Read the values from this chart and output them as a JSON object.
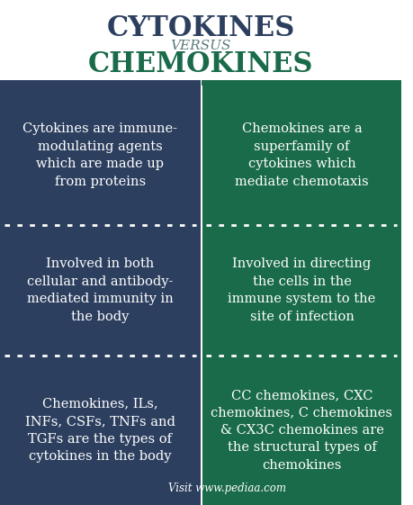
{
  "title_line1": "CYTOKINES",
  "title_line2": "VERSUS",
  "title_line3": "CHEMOKINES",
  "title_color1": "#2d3f5f",
  "title_color2": "#5a7a7a",
  "title_color3": "#1a6b4a",
  "bg_color": "#ffffff",
  "left_bg": "#2d3f5f",
  "right_bg": "#1a6b4a",
  "text_color": "#ffffff",
  "divider_color": "#ffffff",
  "cells": [
    {
      "left": "Cytokines are immune-\nmodulating agents\nwhich are made up\nfrom proteins",
      "right": "Chemokines are a\nsuperfamily of\ncytokines which\nmediate chemotaxis"
    },
    {
      "left": "Involved in both\ncellular and antibody-\nmediated immunity in\nthe body",
      "right": "Involved in directing\nthe cells in the\nimmune system to the\nsite of infection"
    },
    {
      "left": "Chemokines, ILs,\nINFs, CSFs, TNFs and\nTGFs are the types of\ncytokines in the body",
      "right": "CC chemokines, CXC\nchemokines, C chemokines\n& CX3C chemokines are\nthe structural types of\nchemokines"
    }
  ],
  "footer": "Visit www.pediaa.com",
  "figsize": [
    4.59,
    5.61
  ],
  "dpi": 100
}
